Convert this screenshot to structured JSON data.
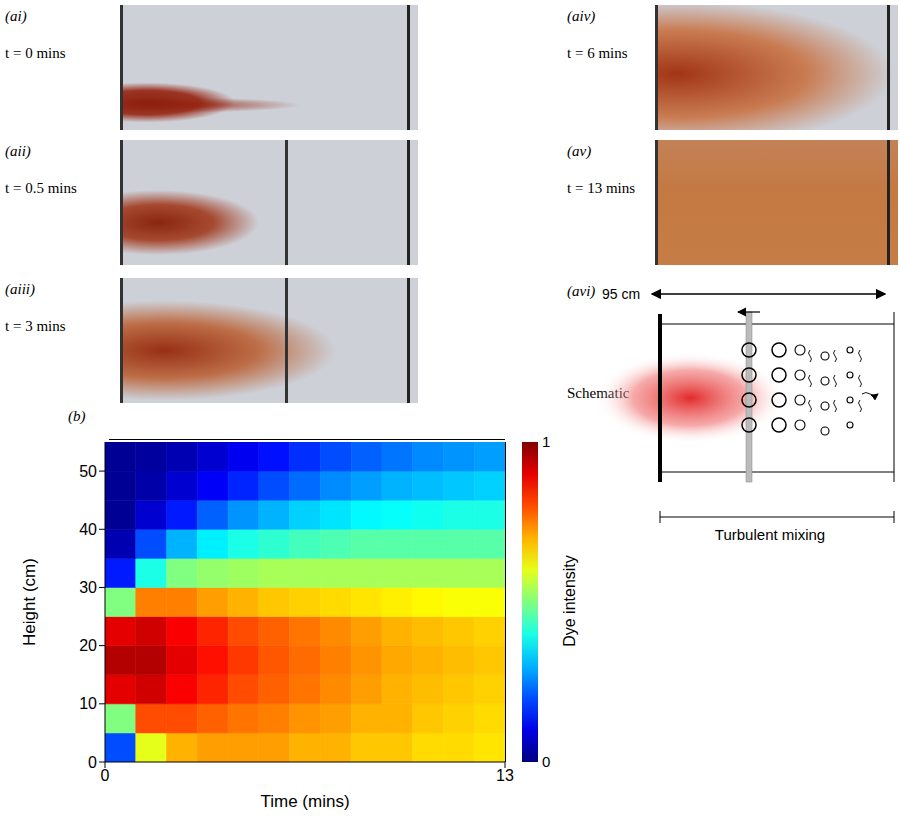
{
  "photos": [
    {
      "label": "(ai)",
      "caption": "t = 0 mins"
    },
    {
      "label": "(aii)",
      "caption": "t = 0.5 mins"
    },
    {
      "label": "(aiii)",
      "caption": "t = 3 mins"
    },
    {
      "label": "(aiv)",
      "caption": "t = 6 mins"
    },
    {
      "label": "(av)",
      "caption": "t = 13 mins"
    }
  ],
  "schematic": {
    "label": "(avi)",
    "caption": "Schematic",
    "length": "95 cm",
    "bracket": "Turbulent mixing"
  },
  "chart_data": {
    "type": "heatmap",
    "label": "(b)",
    "x_label": "Time (mins)",
    "y_label": "Height (cm)",
    "xlim": [
      0,
      13
    ],
    "xticks": [
      0,
      13
    ],
    "ylim": [
      0,
      55
    ],
    "yticks": [
      0,
      10,
      20,
      30,
      40,
      50
    ],
    "x_edges": [
      0,
      1,
      2,
      3,
      4,
      5,
      6,
      7,
      8,
      9,
      10,
      11,
      12,
      13
    ],
    "y_edges": [
      0,
      5,
      10,
      15,
      20,
      25,
      30,
      35,
      40,
      45,
      50,
      55
    ],
    "cells": [
      [
        0.2,
        0.6,
        0.7,
        0.72,
        0.72,
        0.72,
        0.7,
        0.7,
        0.68,
        0.68,
        0.66,
        0.66,
        0.65
      ],
      [
        0.5,
        0.8,
        0.8,
        0.78,
        0.76,
        0.75,
        0.73,
        0.72,
        0.7,
        0.7,
        0.68,
        0.67,
        0.66
      ],
      [
        0.9,
        0.92,
        0.88,
        0.84,
        0.8,
        0.78,
        0.76,
        0.74,
        0.72,
        0.7,
        0.69,
        0.68,
        0.67
      ],
      [
        0.95,
        0.95,
        0.9,
        0.86,
        0.82,
        0.79,
        0.77,
        0.75,
        0.73,
        0.71,
        0.7,
        0.69,
        0.68
      ],
      [
        0.9,
        0.92,
        0.88,
        0.84,
        0.8,
        0.78,
        0.76,
        0.74,
        0.72,
        0.7,
        0.69,
        0.68,
        0.67
      ],
      [
        0.5,
        0.75,
        0.75,
        0.72,
        0.7,
        0.68,
        0.67,
        0.66,
        0.65,
        0.64,
        0.63,
        0.62,
        0.62
      ],
      [
        0.15,
        0.4,
        0.5,
        0.52,
        0.53,
        0.54,
        0.54,
        0.54,
        0.54,
        0.54,
        0.54,
        0.54,
        0.54
      ],
      [
        0.05,
        0.2,
        0.3,
        0.36,
        0.4,
        0.42,
        0.44,
        0.45,
        0.46,
        0.46,
        0.46,
        0.46,
        0.46
      ],
      [
        0.02,
        0.08,
        0.15,
        0.22,
        0.27,
        0.3,
        0.33,
        0.35,
        0.37,
        0.38,
        0.39,
        0.4,
        0.4
      ],
      [
        0.02,
        0.04,
        0.08,
        0.12,
        0.16,
        0.2,
        0.23,
        0.26,
        0.28,
        0.3,
        0.31,
        0.32,
        0.33
      ],
      [
        0.02,
        0.03,
        0.05,
        0.08,
        0.11,
        0.14,
        0.17,
        0.2,
        0.22,
        0.24,
        0.26,
        0.27,
        0.28
      ]
    ],
    "colorbar": {
      "label": "Dye intensity",
      "range": [
        0,
        1
      ],
      "ticks": [
        0,
        1
      ]
    }
  }
}
